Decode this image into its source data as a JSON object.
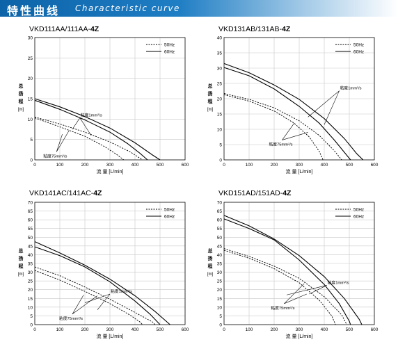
{
  "header": {
    "title_jp": "特性曲线",
    "title_en": "Characteristic curve"
  },
  "chart_data": [
    {
      "type": "line",
      "model_prefix": "VKD111AA/111AA-",
      "model_suffix": "4Z",
      "ylabel": "总扬程（m）",
      "ylabel_chars": [
        "总",
        "扬",
        "程",
        "[m]"
      ],
      "xlabel": "流 量 [L/min]",
      "xlim": [
        0,
        600
      ],
      "ylim": [
        0,
        30
      ],
      "xticks": [
        0,
        100,
        200,
        300,
        400,
        500,
        600
      ],
      "yticks": [
        0,
        5,
        10,
        15,
        20,
        25,
        30
      ],
      "legend": [
        {
          "label": "50Hz",
          "style": "dashed"
        },
        {
          "label": "60Hz",
          "style": "solid"
        }
      ],
      "annotations": [
        {
          "text": "粘度1mm²/s"
        },
        {
          "text": "粘度75mm²/s"
        }
      ],
      "series": [
        {
          "name": "50Hz",
          "viscosity": "粘度1mm²/s",
          "style": "dashed",
          "points": [
            [
              0,
              10.5
            ],
            [
              100,
              8.8
            ],
            [
              200,
              6.8
            ],
            [
              300,
              4.4
            ],
            [
              380,
              2.0
            ],
            [
              430,
              0
            ]
          ]
        },
        {
          "name": "50Hz",
          "viscosity": "粘度75mm²/s",
          "style": "dashed",
          "points": [
            [
              0,
              10.3
            ],
            [
              100,
              8.1
            ],
            [
              200,
              5.8
            ],
            [
              280,
              3.2
            ],
            [
              330,
              1.2
            ],
            [
              355,
              0
            ]
          ]
        },
        {
          "name": "60Hz",
          "viscosity": "粘度1mm²/s",
          "style": "solid",
          "points": [
            [
              0,
              15.0
            ],
            [
              100,
              13.0
            ],
            [
              200,
              10.6
            ],
            [
              300,
              7.8
            ],
            [
              400,
              4.2
            ],
            [
              470,
              1.2
            ],
            [
              500,
              0
            ]
          ]
        },
        {
          "name": "60Hz",
          "viscosity": "粘度75mm²/s",
          "style": "solid",
          "points": [
            [
              0,
              14.6
            ],
            [
              100,
              12.4
            ],
            [
              200,
              9.8
            ],
            [
              300,
              6.8
            ],
            [
              370,
              4.0
            ],
            [
              420,
              1.6
            ],
            [
              450,
              0
            ]
          ]
        }
      ]
    },
    {
      "type": "line",
      "model_prefix": "VKD131AB/131AB-",
      "model_suffix": "4Z",
      "ylabel": "总扬程（m）",
      "ylabel_chars": [
        "总",
        "扬",
        "程",
        "[m]"
      ],
      "xlabel": "流 量 [L/min]",
      "xlim": [
        0,
        600
      ],
      "ylim": [
        0,
        40
      ],
      "xticks": [
        0,
        100,
        200,
        300,
        400,
        500,
        600
      ],
      "yticks": [
        0,
        5,
        10,
        15,
        20,
        25,
        30,
        35,
        40
      ],
      "legend": [
        {
          "label": "50Hz",
          "style": "dashed"
        },
        {
          "label": "60Hz",
          "style": "solid"
        }
      ],
      "annotations": [
        {
          "text": "粘度1mm²/s"
        },
        {
          "text": "粘度75mm²/s"
        }
      ],
      "series": [
        {
          "name": "50Hz",
          "viscosity": "粘度1mm²/s",
          "style": "dashed",
          "points": [
            [
              0,
              21.7
            ],
            [
              100,
              19.8
            ],
            [
              200,
              17.0
            ],
            [
              300,
              12.8
            ],
            [
              380,
              8.0
            ],
            [
              440,
              3.0
            ],
            [
              470,
              0
            ]
          ]
        },
        {
          "name": "50Hz",
          "viscosity": "粘度75mm²/s",
          "style": "dashed",
          "points": [
            [
              0,
              21.3
            ],
            [
              100,
              19.2
            ],
            [
              200,
              16.0
            ],
            [
              280,
              12.0
            ],
            [
              340,
              7.5
            ],
            [
              380,
              2.8
            ],
            [
              395,
              0
            ]
          ]
        },
        {
          "name": "60Hz",
          "viscosity": "粘度1mm²/s",
          "style": "solid",
          "points": [
            [
              0,
              31.5
            ],
            [
              100,
              28.5
            ],
            [
              200,
              24.5
            ],
            [
              300,
              19.8
            ],
            [
              400,
              13.5
            ],
            [
              480,
              7.0
            ],
            [
              530,
              2.0
            ],
            [
              555,
              0
            ]
          ]
        },
        {
          "name": "60Hz",
          "viscosity": "粘度75mm²/s",
          "style": "solid",
          "points": [
            [
              0,
              30.2
            ],
            [
              100,
              27.5
            ],
            [
              200,
              23.2
            ],
            [
              300,
              17.5
            ],
            [
              380,
              12.0
            ],
            [
              440,
              6.5
            ],
            [
              490,
              1.5
            ],
            [
              505,
              0
            ]
          ]
        }
      ]
    },
    {
      "type": "line",
      "model_prefix": "VKD141AC/141AC-",
      "model_suffix": "4Z",
      "ylabel": "总扬程（m）",
      "ylabel_chars": [
        "总",
        "扬",
        "程",
        "[m]"
      ],
      "xlabel": "流 量 [L/min]",
      "xlim": [
        0,
        600
      ],
      "ylim": [
        0,
        70
      ],
      "xticks": [
        0,
        100,
        200,
        300,
        400,
        500,
        600
      ],
      "yticks": [
        0,
        5,
        10,
        15,
        20,
        25,
        30,
        35,
        40,
        45,
        50,
        55,
        60,
        65,
        70
      ],
      "legend": [
        {
          "label": "50Hz",
          "style": "dashed"
        },
        {
          "label": "60Hz",
          "style": "solid"
        }
      ],
      "annotations": [
        {
          "text": "粘度1mm²/s"
        },
        {
          "text": "粘度75mm²/s"
        }
      ],
      "series": [
        {
          "name": "50Hz",
          "viscosity": "粘度1mm²/s",
          "style": "dashed",
          "points": [
            [
              0,
              33.0
            ],
            [
              100,
              28.0
            ],
            [
              200,
              21.5
            ],
            [
              300,
              14.5
            ],
            [
              400,
              7.0
            ],
            [
              470,
              1.5
            ],
            [
              480,
              0
            ]
          ]
        },
        {
          "name": "50Hz",
          "viscosity": "粘度75mm²/s",
          "style": "dashed",
          "points": [
            [
              0,
              31.0
            ],
            [
              100,
              25.5
            ],
            [
              200,
              19.0
            ],
            [
              300,
              12.0
            ],
            [
              380,
              5.5
            ],
            [
              420,
              1.5
            ],
            [
              430,
              0
            ]
          ]
        },
        {
          "name": "60Hz",
          "viscosity": "粘度1mm²/s",
          "style": "solid",
          "points": [
            [
              0,
              47.5
            ],
            [
              100,
              41.0
            ],
            [
              200,
              34.0
            ],
            [
              300,
              26.0
            ],
            [
              400,
              16.5
            ],
            [
              480,
              7.5
            ],
            [
              540,
              0
            ]
          ]
        },
        {
          "name": "60Hz",
          "viscosity": "粘度75mm²/s",
          "style": "solid",
          "points": [
            [
              0,
              44.5
            ],
            [
              100,
              39.5
            ],
            [
              200,
              33.0
            ],
            [
              300,
              24.5
            ],
            [
              400,
              13.5
            ],
            [
              460,
              6.0
            ],
            [
              500,
              0
            ]
          ]
        }
      ]
    },
    {
      "type": "line",
      "model_prefix": "VKD151AD/151AD-",
      "model_suffix": "4Z",
      "ylabel": "总扬程（m）",
      "ylabel_chars": [
        "总",
        "扬",
        "程",
        "[m]"
      ],
      "xlabel": "流 量 [L/min]",
      "xlim": [
        0,
        600
      ],
      "ylim": [
        0,
        70
      ],
      "xticks": [
        0,
        100,
        200,
        300,
        400,
        500,
        600
      ],
      "yticks": [
        0,
        5,
        10,
        15,
        20,
        25,
        30,
        35,
        40,
        45,
        50,
        55,
        60,
        65,
        70
      ],
      "legend": [
        {
          "label": "50Hz",
          "style": "dashed"
        },
        {
          "label": "60Hz",
          "style": "solid"
        }
      ],
      "annotations": [
        {
          "text": "粘度1mm²/s"
        },
        {
          "text": "粘度75mm²/s"
        }
      ],
      "series": [
        {
          "name": "50Hz",
          "viscosity": "粘度1mm²/s",
          "style": "dashed",
          "points": [
            [
              0,
              43.5
            ],
            [
              100,
              39.0
            ],
            [
              200,
              33.5
            ],
            [
              300,
              26.5
            ],
            [
              400,
              16.0
            ],
            [
              470,
              5.5
            ],
            [
              490,
              0
            ]
          ]
        },
        {
          "name": "50Hz",
          "viscosity": "粘度75mm²/s",
          "style": "dashed",
          "points": [
            [
              0,
              42.5
            ],
            [
              100,
              38.0
            ],
            [
              200,
              32.0
            ],
            [
              300,
              24.0
            ],
            [
              380,
              14.0
            ],
            [
              430,
              5.0
            ],
            [
              445,
              0
            ]
          ]
        },
        {
          "name": "60Hz",
          "viscosity": "粘度1mm²/s",
          "style": "solid",
          "points": [
            [
              0,
              62.5
            ],
            [
              100,
              56.5
            ],
            [
              200,
              49.0
            ],
            [
              300,
              39.5
            ],
            [
              400,
              27.5
            ],
            [
              480,
              15.0
            ],
            [
              540,
              3.0
            ],
            [
              550,
              0
            ]
          ]
        },
        {
          "name": "60Hz",
          "viscosity": "粘度75mm²/s",
          "style": "solid",
          "points": [
            [
              0,
              60.5
            ],
            [
              100,
              55.0
            ],
            [
              200,
              48.5
            ],
            [
              300,
              37.0
            ],
            [
              400,
              23.0
            ],
            [
              460,
              12.0
            ],
            [
              500,
              2.0
            ],
            [
              505,
              0
            ]
          ]
        }
      ]
    }
  ]
}
